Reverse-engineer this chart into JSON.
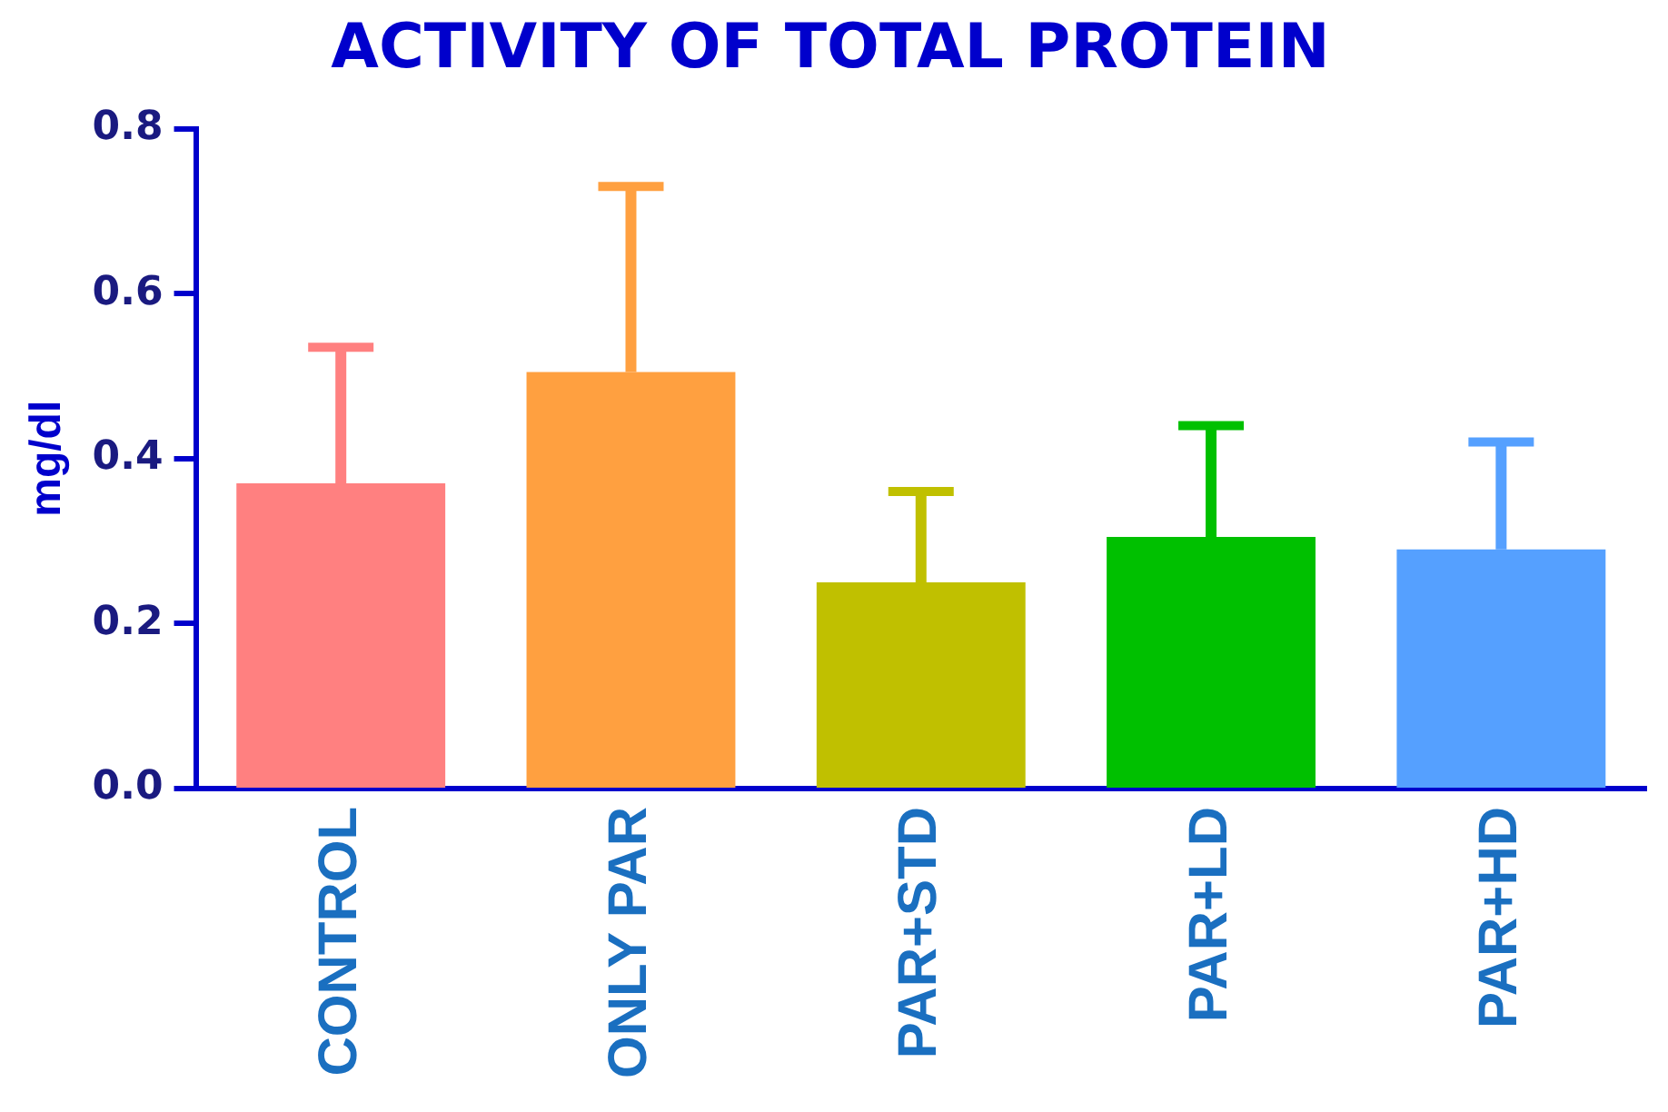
{
  "chart_data": {
    "type": "bar",
    "title": "ACTIVITY OF TOTAL PROTEIN",
    "ylabel": "mg/dl",
    "categories": [
      "CONTROL",
      "ONLY PAR",
      "PAR+STD",
      "PAR+LD",
      "PAR+HD"
    ],
    "values": [
      0.37,
      0.505,
      0.25,
      0.305,
      0.29
    ],
    "colors": [
      "#ff8080",
      "#ffa040",
      "#c0c000",
      "#00c000",
      "#55a0ff"
    ],
    "errors": [
      [
        0.37,
        0.535
      ],
      [
        0.505,
        0.73
      ],
      [
        0.25,
        0.36
      ],
      [
        0.305,
        0.44
      ],
      [
        0.29,
        0.42
      ]
    ],
    "ylim": [
      0,
      0.8
    ],
    "yticks": [
      {
        "value": 0,
        "label": "0.0"
      },
      {
        "value": 0.2,
        "label": "0.2"
      },
      {
        "value": 0.4,
        "label": "0.4"
      },
      {
        "value": 0.6,
        "label": "0.6"
      },
      {
        "value": 0.8,
        "label": "0.8"
      }
    ],
    "grid": false,
    "legend": false
  }
}
